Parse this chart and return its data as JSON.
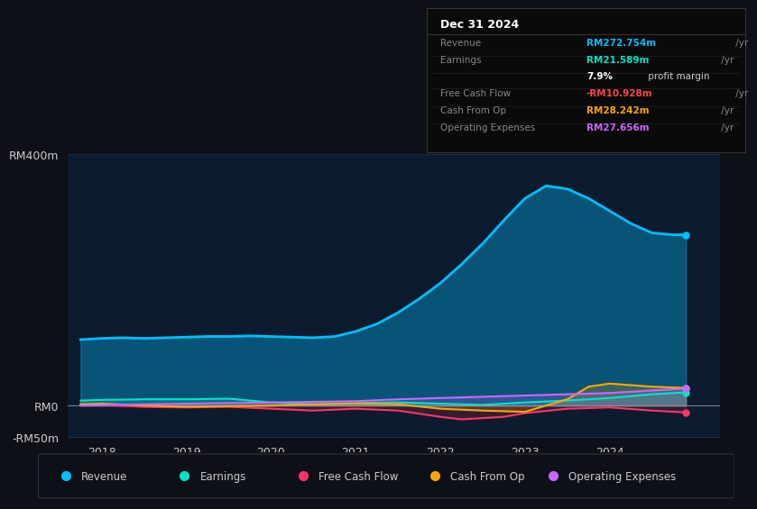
{
  "bg_color": "#0d1117",
  "plot_bg_color": "#0d1b2e",
  "ylim": [
    -50,
    400
  ],
  "ytick_labels": [
    "-RM50m",
    "RM0",
    "RM400m"
  ],
  "ytick_vals": [
    -50,
    0,
    400
  ],
  "xlabel_years": [
    2018,
    2019,
    2020,
    2021,
    2022,
    2023,
    2024
  ],
  "series": {
    "Revenue": {
      "color": "#00bfff",
      "fill": true,
      "fill_alpha": 0.35,
      "linewidth": 2.0,
      "x": [
        2017.75,
        2018.0,
        2018.25,
        2018.5,
        2018.75,
        2019.0,
        2019.25,
        2019.5,
        2019.75,
        2020.0,
        2020.25,
        2020.5,
        2020.75,
        2021.0,
        2021.25,
        2021.5,
        2021.75,
        2022.0,
        2022.25,
        2022.5,
        2022.75,
        2023.0,
        2023.25,
        2023.5,
        2023.75,
        2024.0,
        2024.25,
        2024.5,
        2024.75,
        2024.9
      ],
      "y": [
        105,
        107,
        108,
        107,
        108,
        109,
        110,
        110,
        111,
        110,
        109,
        108,
        110,
        118,
        130,
        148,
        170,
        195,
        225,
        258,
        295,
        330,
        350,
        345,
        330,
        310,
        290,
        275,
        272,
        272
      ]
    },
    "Earnings": {
      "color": "#00e5c8",
      "fill": true,
      "fill_alpha": 0.2,
      "linewidth": 1.5,
      "x": [
        2017.75,
        2018.0,
        2018.5,
        2019.0,
        2019.5,
        2020.0,
        2020.5,
        2021.0,
        2021.5,
        2022.0,
        2022.5,
        2023.0,
        2023.5,
        2024.0,
        2024.5,
        2024.9
      ],
      "y": [
        8,
        9,
        10,
        10,
        11,
        5,
        2,
        4,
        5,
        3,
        1,
        5,
        8,
        12,
        18,
        21
      ]
    },
    "Free Cash Flow": {
      "color": "#ff3366",
      "fill": true,
      "fill_alpha": 0.15,
      "linewidth": 1.5,
      "x": [
        2017.75,
        2018.0,
        2018.5,
        2019.0,
        2019.5,
        2020.0,
        2020.5,
        2021.0,
        2021.5,
        2022.0,
        2022.25,
        2022.5,
        2022.75,
        2023.0,
        2023.5,
        2024.0,
        2024.5,
        2024.9
      ],
      "y": [
        2,
        1,
        -2,
        -3,
        -2,
        -5,
        -8,
        -5,
        -8,
        -18,
        -22,
        -20,
        -18,
        -12,
        -5,
        -3,
        -8,
        -11
      ]
    },
    "Cash From Op": {
      "color": "#ffa500",
      "fill": true,
      "fill_alpha": 0.2,
      "linewidth": 1.5,
      "x": [
        2017.75,
        2018.0,
        2018.5,
        2019.0,
        2019.5,
        2020.0,
        2020.5,
        2021.0,
        2021.5,
        2022.0,
        2022.5,
        2023.0,
        2023.25,
        2023.5,
        2023.75,
        2024.0,
        2024.5,
        2024.9
      ],
      "y": [
        2,
        3,
        0,
        -2,
        -1,
        0,
        2,
        3,
        2,
        -5,
        -8,
        -10,
        0,
        10,
        30,
        35,
        30,
        28
      ]
    },
    "Operating Expenses": {
      "color": "#cc66ff",
      "fill": true,
      "fill_alpha": 0.2,
      "linewidth": 1.5,
      "x": [
        2017.75,
        2018.0,
        2018.5,
        2019.0,
        2019.5,
        2020.0,
        2020.5,
        2021.0,
        2021.5,
        2022.0,
        2022.5,
        2023.0,
        2023.5,
        2024.0,
        2024.5,
        2024.9
      ],
      "y": [
        0,
        1,
        2,
        3,
        4,
        5,
        6,
        7,
        10,
        12,
        14,
        16,
        18,
        20,
        24,
        27
      ]
    }
  },
  "legend_items": [
    {
      "label": "Revenue",
      "color": "#00bfff"
    },
    {
      "label": "Earnings",
      "color": "#00e5c8"
    },
    {
      "label": "Free Cash Flow",
      "color": "#ff3366"
    },
    {
      "label": "Cash From Op",
      "color": "#ffa500"
    },
    {
      "label": "Operating Expenses",
      "color": "#cc66ff"
    }
  ],
  "info_box": {
    "date": "Dec 31 2024",
    "rows": [
      {
        "label": "Revenue",
        "value": "RM272.754m",
        "value_color": "#00bfff",
        "suffix": " /yr",
        "bold_value": false
      },
      {
        "label": "Earnings",
        "value": "RM21.589m",
        "value_color": "#00e5c8",
        "suffix": " /yr",
        "bold_value": false
      },
      {
        "label": "",
        "value": "7.9%",
        "value_color": "#ffffff",
        "suffix": " profit margin",
        "bold_value": true
      },
      {
        "label": "Free Cash Flow",
        "value": "-RM10.928m",
        "value_color": "#ff4444",
        "suffix": " /yr",
        "bold_value": false
      },
      {
        "label": "Cash From Op",
        "value": "RM28.242m",
        "value_color": "#ffa500",
        "suffix": " /yr",
        "bold_value": false
      },
      {
        "label": "Operating Expenses",
        "value": "RM27.656m",
        "value_color": "#cc66ff",
        "suffix": " /yr",
        "bold_value": false
      }
    ]
  },
  "grid_color": "#1e3050",
  "zero_line_color": "#aaaaaa",
  "axis_label_color": "#cccccc",
  "box_bg_color": "#0a0a0a",
  "box_border_color": "#333333",
  "box_divider_color": "#222222"
}
